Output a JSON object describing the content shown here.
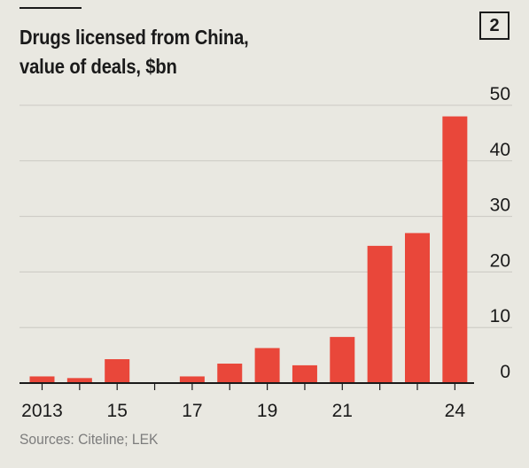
{
  "figure_number": "2",
  "title_lines": [
    "Drugs licensed from China,",
    "value of deals, $bn"
  ],
  "source": "Sources: Citeline; LEK",
  "colors": {
    "bar": "#e9473a",
    "background": "#e9e8e1",
    "grid": "#cac9c2",
    "axis": "#1a1a1a",
    "text": "#1a1a1a",
    "source_text": "#7c7c7c"
  },
  "chart_data": {
    "type": "bar",
    "categories": [
      "2013",
      "2014",
      "2015",
      "2016",
      "2017",
      "2018",
      "2019",
      "2020",
      "2021",
      "2022",
      "2023",
      "2024"
    ],
    "x_tick_labels": [
      "2013",
      "",
      "15",
      "",
      "17",
      "",
      "19",
      "",
      "21",
      "",
      "",
      "24"
    ],
    "series": [
      {
        "values": [
          1.2,
          0.9,
          4.3,
          0.1,
          1.2,
          3.5,
          6.3,
          3.2,
          8.3,
          24.7,
          27.0,
          48.0
        ]
      }
    ],
    "title": "Drugs licensed from China, value of deals, $bn",
    "xlabel": "",
    "ylabel": "",
    "ylim": [
      0,
      50
    ],
    "yticks": [
      0,
      10,
      20,
      30,
      40,
      50
    ],
    "y_axis_side": "right",
    "grid": true,
    "legend": "none"
  }
}
